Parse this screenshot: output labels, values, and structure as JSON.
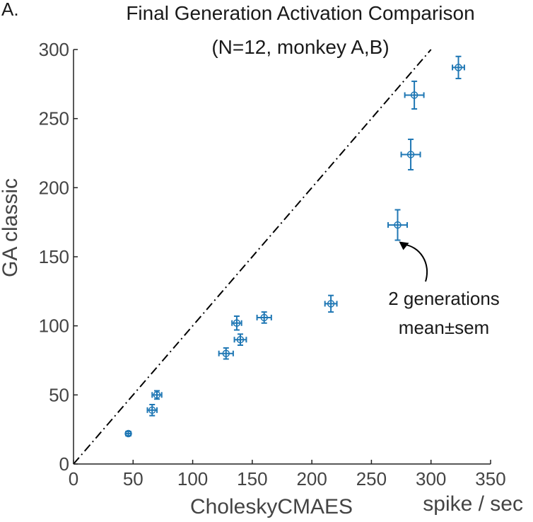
{
  "panel_label": "A.",
  "chart_data": {
    "type": "scatter",
    "title": "Final Generation Activation Comparison",
    "subtitle": "(N=12, monkey A,B)",
    "xlabel": "CholeskyCMAES",
    "ylabel": "GA classic",
    "unit_label": "spike / sec",
    "xlim": [
      0,
      350
    ],
    "ylim": [
      0,
      300
    ],
    "xticks": [
      0,
      50,
      100,
      150,
      200,
      250,
      300,
      350
    ],
    "yticks": [
      0,
      50,
      100,
      150,
      200,
      250,
      300
    ],
    "grid": false,
    "marker_color": "#1f77b4",
    "reference_line": {
      "style": "dash-dot",
      "color": "#000000",
      "x": [
        0,
        300
      ],
      "y": [
        0,
        300
      ]
    },
    "points": [
      {
        "x": 46,
        "y": 22,
        "xerr": 2,
        "yerr": 1.5
      },
      {
        "x": 66,
        "y": 39,
        "xerr": 4,
        "yerr": 4
      },
      {
        "x": 70,
        "y": 50,
        "xerr": 4,
        "yerr": 3
      },
      {
        "x": 128,
        "y": 80,
        "xerr": 6,
        "yerr": 4
      },
      {
        "x": 137,
        "y": 102,
        "xerr": 4,
        "yerr": 5
      },
      {
        "x": 140,
        "y": 90,
        "xerr": 5,
        "yerr": 4
      },
      {
        "x": 160,
        "y": 106,
        "xerr": 6,
        "yerr": 4
      },
      {
        "x": 216,
        "y": 116,
        "xerr": 5,
        "yerr": 6
      },
      {
        "x": 272,
        "y": 173,
        "xerr": 8,
        "yerr": 11
      },
      {
        "x": 283,
        "y": 224,
        "xerr": 8,
        "yerr": 11
      },
      {
        "x": 286,
        "y": 267,
        "xerr": 8,
        "yerr": 10
      },
      {
        "x": 323,
        "y": 287,
        "xerr": 5,
        "yerr": 8
      }
    ],
    "annotation": {
      "lines": [
        "2 generations",
        "mean±sem"
      ],
      "points_to": {
        "x": 272,
        "y": 162
      }
    }
  }
}
